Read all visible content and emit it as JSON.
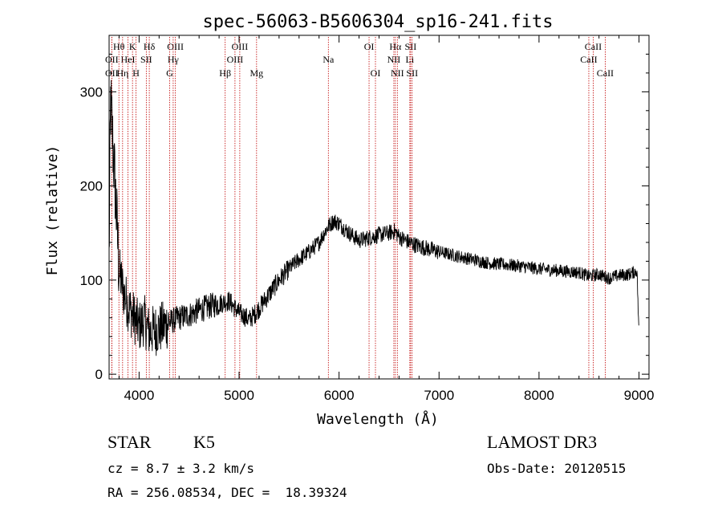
{
  "chart_data": {
    "type": "line",
    "title": "spec-56063-B5606304_sp16-241.fits",
    "xlabel": "Wavelength (Å)",
    "ylabel": "Flux (relative)",
    "xlim": [
      3700,
      9100
    ],
    "ylim": [
      -5,
      360
    ],
    "xticks": [
      4000,
      5000,
      6000,
      7000,
      8000,
      9000
    ],
    "yticks": [
      0,
      100,
      200,
      300
    ],
    "spectrum_anchors": {
      "x": [
        3700,
        3715,
        3730,
        3760,
        3800,
        3850,
        3900,
        3950,
        4000,
        4050,
        4100,
        4200,
        4300,
        4400,
        4500,
        4600,
        4700,
        4800,
        4900,
        5000,
        5050,
        5100,
        5150,
        5200,
        5300,
        5400,
        5500,
        5600,
        5700,
        5800,
        5850,
        5900,
        5950,
        6000,
        6100,
        6200,
        6300,
        6400,
        6500,
        6560,
        6600,
        6700,
        6800,
        6900,
        7000,
        7200,
        7500,
        7800,
        8000,
        8200,
        8400,
        8500,
        8600,
        8700,
        8800,
        8900,
        8980,
        9000
      ],
      "y": [
        120,
        290,
        260,
        200,
        110,
        85,
        70,
        60,
        50,
        58,
        45,
        48,
        55,
        60,
        63,
        68,
        72,
        75,
        78,
        65,
        62,
        58,
        63,
        70,
        85,
        100,
        112,
        122,
        130,
        140,
        150,
        158,
        163,
        160,
        150,
        142,
        145,
        148,
        150,
        152,
        146,
        140,
        136,
        133,
        130,
        125,
        118,
        115,
        112,
        110,
        108,
        104,
        106,
        102,
        105,
        106,
        110,
        40
      ]
    },
    "noise_level": 9,
    "lines": [
      {
        "label": "Hθ",
        "wave": 3798,
        "row": 1
      },
      {
        "label": "OII",
        "wave": 3727,
        "row": 2
      },
      {
        "label": "OII",
        "wave": 3727,
        "row": 3
      },
      {
        "label": "K",
        "wave": 3934,
        "row": 1
      },
      {
        "label": "HeI",
        "wave": 3889,
        "row": 2
      },
      {
        "label": "Hη",
        "wave": 3835,
        "row": 3
      },
      {
        "label": "Hδ",
        "wave": 4102,
        "row": 1
      },
      {
        "label": "SII",
        "wave": 4072,
        "row": 2
      },
      {
        "label": "H",
        "wave": 3969,
        "row": 3
      },
      {
        "label": "OIII",
        "wave": 4363,
        "row": 1
      },
      {
        "label": "Hγ",
        "wave": 4341,
        "row": 2
      },
      {
        "label": "G",
        "wave": 4305,
        "row": 3
      },
      {
        "label": "OIII",
        "wave": 5007,
        "row": 1
      },
      {
        "label": "OIII",
        "wave": 4959,
        "row": 2
      },
      {
        "label": "Hβ",
        "wave": 4861,
        "row": 3
      },
      {
        "label": "Mg",
        "wave": 5175,
        "row": 3
      },
      {
        "label": "Na",
        "wave": 5893,
        "row": 2
      },
      {
        "label": "OI",
        "wave": 6300,
        "row": 1
      },
      {
        "label": "OI",
        "wave": 6364,
        "row": 3
      },
      {
        "label": "Hα",
        "wave": 6563,
        "row": 1
      },
      {
        "label": "NII",
        "wave": 6548,
        "row": 2
      },
      {
        "label": "NII",
        "wave": 6583,
        "row": 3
      },
      {
        "label": "SII",
        "wave": 6716,
        "row": 1
      },
      {
        "label": "Li",
        "wave": 6708,
        "row": 2
      },
      {
        "label": "SII",
        "wave": 6731,
        "row": 3
      },
      {
        "label": "CaII",
        "wave": 8542,
        "row": 1
      },
      {
        "label": "CaII",
        "wave": 8498,
        "row": 2
      },
      {
        "label": "CaII",
        "wave": 8662,
        "row": 3
      }
    ],
    "line_color": "#c00000",
    "spectrum_color": "#000000"
  },
  "info": {
    "class": "STAR",
    "subclass": "K5",
    "survey": "LAMOST DR3",
    "cz": "cz = 8.7 ± 3.2 km/s",
    "obs_date": "Obs-Date: 20120515",
    "coords": "RA = 256.08534, DEC =  18.39324"
  }
}
